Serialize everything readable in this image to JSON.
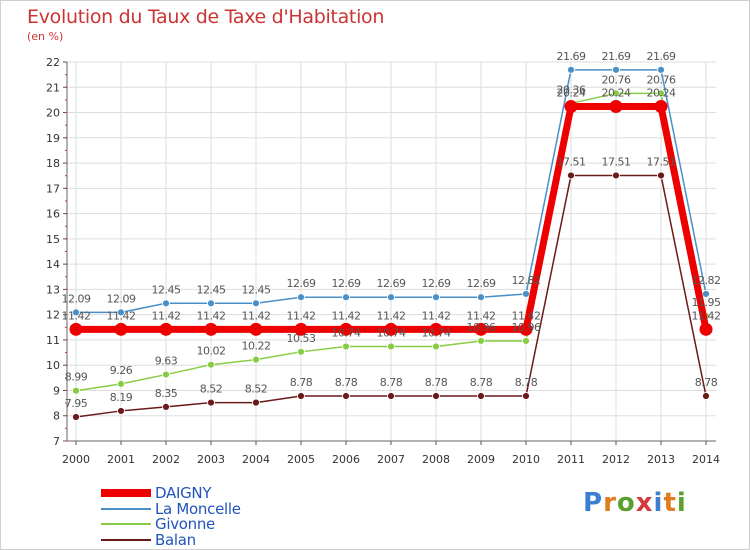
{
  "title": "Evolution du Taux de Taxe d'Habitation",
  "unit_label": "(en %)",
  "logo": {
    "letters": [
      "P",
      "r",
      "o",
      "x",
      "i",
      "t",
      "i"
    ],
    "colors": [
      "#3a7fd0",
      "#e07b1e",
      "#5aa02c",
      "#d43a3a",
      "#3a7fd0",
      "#e07b1e",
      "#5aa02c"
    ]
  },
  "chart_data": {
    "type": "line",
    "title": "Evolution du Taux de Taxe d'Habitation",
    "ylabel": "(en %)",
    "xlabel": "",
    "ylim": [
      7,
      22
    ],
    "yticks": [
      7,
      8,
      9,
      10,
      11,
      12,
      13,
      14,
      15,
      16,
      17,
      18,
      19,
      20,
      21,
      22
    ],
    "categories": [
      "2000",
      "2001",
      "2002",
      "2003",
      "2004",
      "2005",
      "2006",
      "2007",
      "2008",
      "2009",
      "2010",
      "2011",
      "2012",
      "2013",
      "2014"
    ],
    "grid": true,
    "legend_position": "bottom-left",
    "series": [
      {
        "name": "DAIGNY",
        "color": "#ee0000",
        "values": [
          11.42,
          11.42,
          11.42,
          11.42,
          11.42,
          11.42,
          11.42,
          11.42,
          11.42,
          11.42,
          11.42,
          20.24,
          20.24,
          20.24,
          11.42
        ],
        "labels": [
          "11.42",
          "11.42",
          "11.42",
          "11.42",
          "11.42",
          "11.42",
          "11.42",
          "11.42",
          "11.42",
          "11.42",
          "11.42",
          "20.24",
          "20.24",
          "20.24",
          "11.42"
        ]
      },
      {
        "name": "La Moncelle",
        "color": "#4a90c8",
        "values": [
          12.09,
          12.09,
          12.45,
          12.45,
          12.45,
          12.69,
          12.69,
          12.69,
          12.69,
          12.69,
          12.82,
          21.69,
          21.69,
          21.69,
          12.82
        ],
        "labels": [
          "12.09",
          "12.09",
          "12.45",
          "12.45",
          "12.45",
          "12.69",
          "12.69",
          "12.69",
          "12.69",
          "12.69",
          "12.82",
          "21.69",
          "21.69",
          "21.69",
          "12.82"
        ]
      },
      {
        "name": "Givonne",
        "color": "#88cc44",
        "values": [
          8.99,
          9.26,
          9.63,
          10.02,
          10.22,
          10.53,
          10.74,
          10.74,
          10.74,
          10.96,
          10.96,
          20.36,
          20.76,
          20.76,
          11.95
        ],
        "labels": [
          "8.99",
          "9.26",
          "9.63",
          "10.02",
          "10.22",
          "10.53",
          "10.74",
          "10.74",
          "10.74",
          "10.96",
          "10.96",
          "20.36",
          "20.76",
          "20.76",
          "11.95"
        ]
      },
      {
        "name": "Balan",
        "color": "#6b1a1a",
        "values": [
          7.95,
          8.19,
          8.35,
          8.52,
          8.52,
          8.78,
          8.78,
          8.78,
          8.78,
          8.78,
          8.78,
          17.51,
          17.51,
          17.51,
          8.78
        ],
        "labels": [
          "7.95",
          "8.19",
          "8.35",
          "8.52",
          "8.52",
          "8.78",
          "8.78",
          "8.78",
          "8.78",
          "8.78",
          "8.78",
          "17.51",
          "17.51",
          "17.51",
          "8.78"
        ]
      }
    ]
  }
}
